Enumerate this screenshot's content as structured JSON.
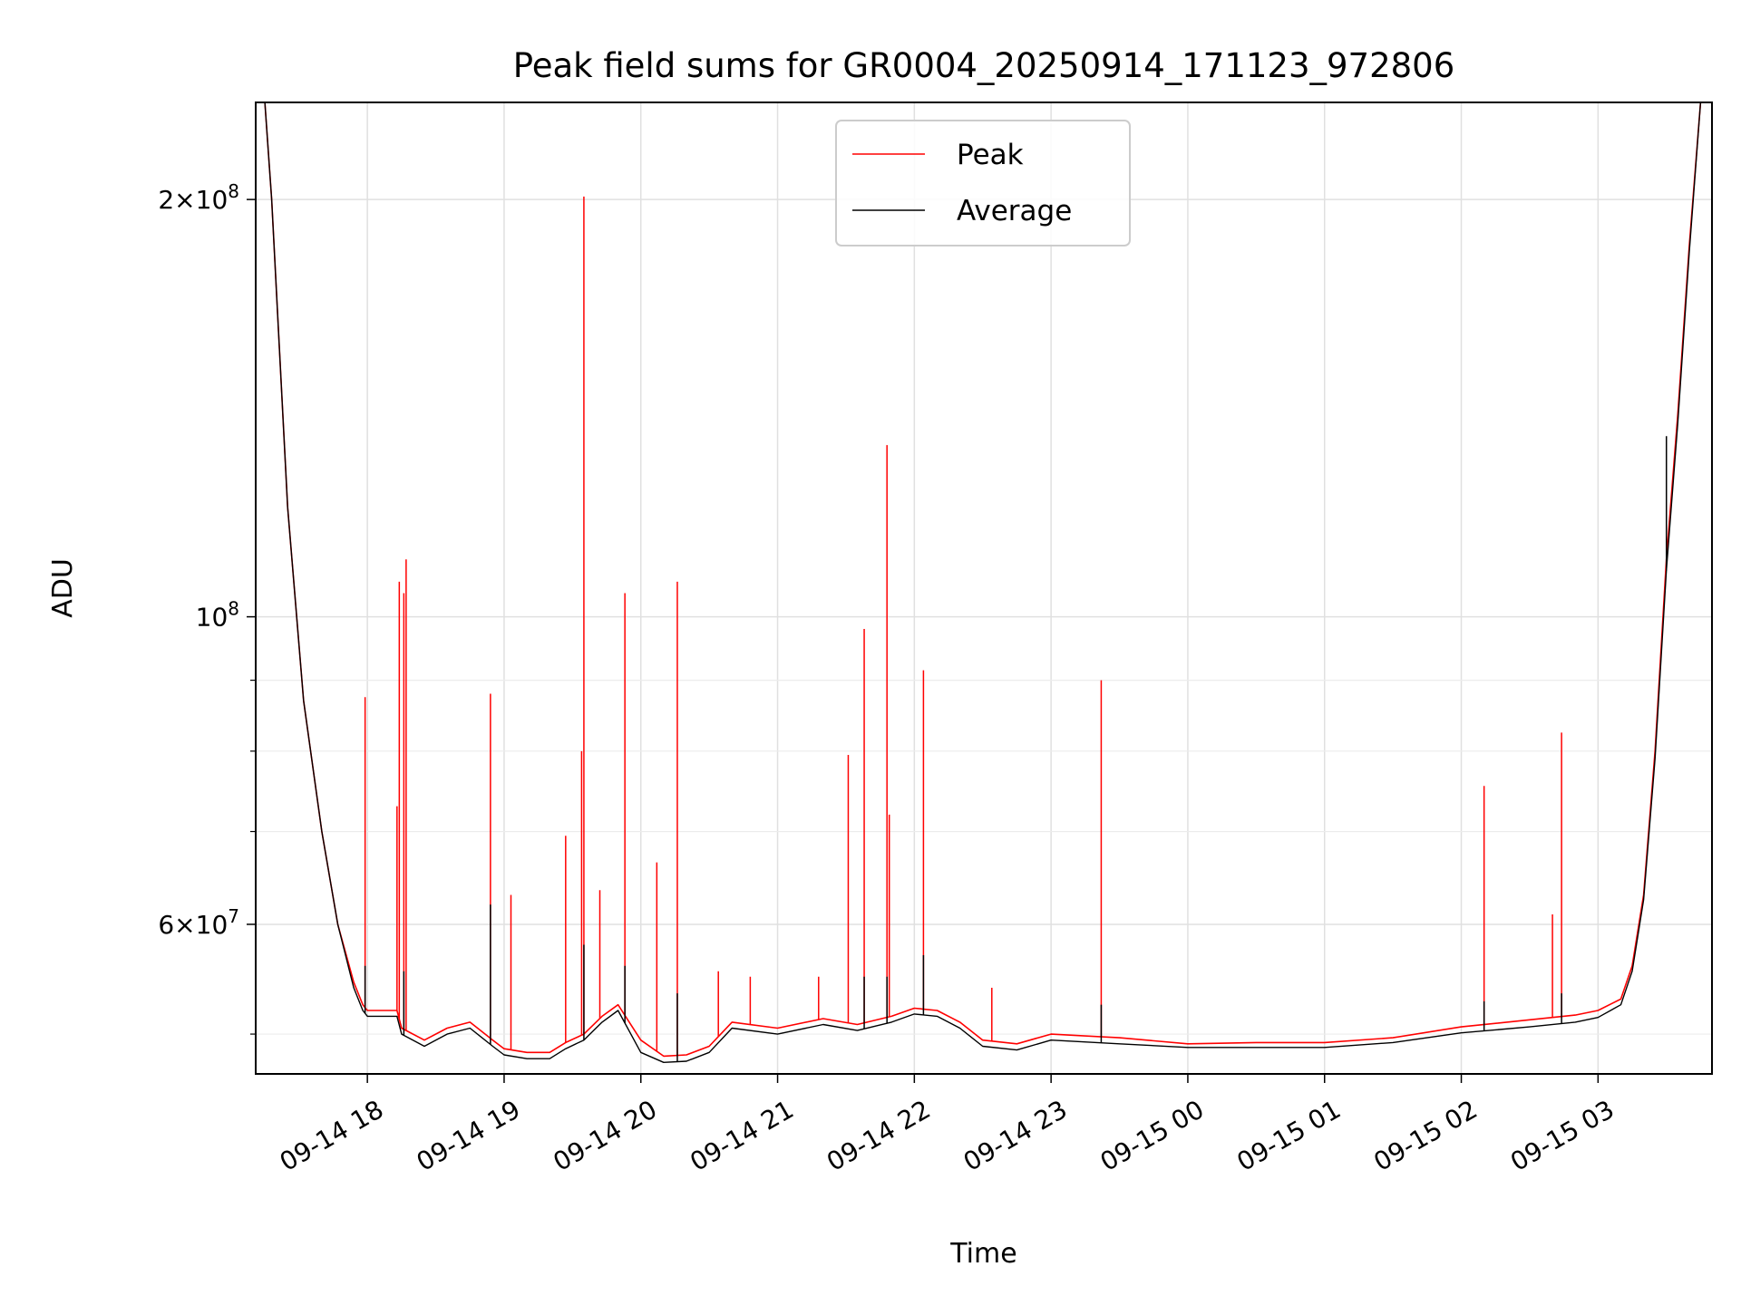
{
  "chart_data": {
    "type": "line",
    "title": "Peak field sums for GR0004_20250914_171123_972806",
    "xlabel": "Time",
    "ylabel": "ADU",
    "yscale": "log",
    "ylim": [
      46800000,
      235000000
    ],
    "xlim": [
      "2025-09-14 17:11",
      "2025-09-15 03:50"
    ],
    "grid": true,
    "legend_position": "top-center",
    "x_tick_labels": [
      "09-14 18",
      "09-14 19",
      "09-14 20",
      "09-14 21",
      "09-14 22",
      "09-14 23",
      "09-15 00",
      "09-15 01",
      "09-15 02",
      "09-15 03"
    ],
    "x_ticks": [
      "2025-09-14 18:00",
      "2025-09-14 19:00",
      "2025-09-14 20:00",
      "2025-09-14 21:00",
      "2025-09-14 22:00",
      "2025-09-14 23:00",
      "2025-09-15 00:00",
      "2025-09-15 01:00",
      "2025-09-15 02:00",
      "2025-09-15 03:00"
    ],
    "y_ticks": [
      {
        "value": 60000000,
        "mantissa": "6",
        "exponent": "7"
      },
      {
        "value": 100000000,
        "mantissa": "",
        "exponent": "8"
      },
      {
        "value": 200000000,
        "mantissa": "2",
        "exponent": "8"
      }
    ],
    "y_minor_ticks": [
      50000000,
      70000000,
      80000000,
      90000000
    ],
    "series": [
      {
        "name": "Peak",
        "color": "#ff0000",
        "x": [
          "2025-09-14 17:11",
          "2025-09-14 17:15",
          "2025-09-14 17:18",
          "2025-09-14 17:25",
          "2025-09-14 17:32",
          "2025-09-14 17:40",
          "2025-09-14 17:47",
          "2025-09-14 17:54",
          "2025-09-14 17:58",
          "2025-09-14 18:00",
          "2025-09-14 18:13",
          "2025-09-14 18:15",
          "2025-09-14 18:25",
          "2025-09-14 18:35",
          "2025-09-14 18:45",
          "2025-09-14 18:55",
          "2025-09-14 19:00",
          "2025-09-14 19:10",
          "2025-09-14 19:20",
          "2025-09-14 19:27",
          "2025-09-14 19:35",
          "2025-09-14 19:43",
          "2025-09-14 19:50",
          "2025-09-14 20:00",
          "2025-09-14 20:10",
          "2025-09-14 20:20",
          "2025-09-14 20:30",
          "2025-09-14 20:40",
          "2025-09-14 21:00",
          "2025-09-14 21:20",
          "2025-09-14 21:35",
          "2025-09-14 21:50",
          "2025-09-14 22:00",
          "2025-09-14 22:10",
          "2025-09-14 22:20",
          "2025-09-14 22:30",
          "2025-09-14 22:45",
          "2025-09-14 23:00",
          "2025-09-14 23:30",
          "2025-09-15 00:00",
          "2025-09-15 00:30",
          "2025-09-15 01:00",
          "2025-09-15 01:30",
          "2025-09-15 02:00",
          "2025-09-15 02:30",
          "2025-09-15 02:50",
          "2025-09-15 03:00",
          "2025-09-15 03:10",
          "2025-09-15 03:15",
          "2025-09-15 03:20",
          "2025-09-15 03:25",
          "2025-09-15 03:30",
          "2025-09-15 03:35",
          "2025-09-15 03:40",
          "2025-09-15 03:45",
          "2025-09-15 03:50"
        ],
        "values": [
          235000000,
          235000000,
          200000000,
          120000000,
          87000000,
          70000000,
          60000000,
          54500000,
          52500000,
          52000000,
          52000000,
          50500000,
          49500000,
          50500000,
          51000000,
          49500000,
          48800000,
          48500000,
          48500000,
          49300000,
          50000000,
          51500000,
          52500000,
          49500000,
          48200000,
          48300000,
          49000000,
          51000000,
          50500000,
          51300000,
          50800000,
          51500000,
          52200000,
          52000000,
          51000000,
          49500000,
          49200000,
          50000000,
          49700000,
          49200000,
          49300000,
          49300000,
          49700000,
          50600000,
          51200000,
          51600000,
          52000000,
          53000000,
          56000000,
          63000000,
          80000000,
          110000000,
          140000000,
          185000000,
          235000000,
          235000000
        ],
        "spikes": [
          {
            "x": "2025-09-14 17:59",
            "value": 87500000
          },
          {
            "x": "2025-09-14 18:13",
            "value": 73000000
          },
          {
            "x": "2025-09-14 18:14",
            "value": 106000000
          },
          {
            "x": "2025-09-14 18:16",
            "value": 104000000
          },
          {
            "x": "2025-09-14 18:17",
            "value": 110000000
          },
          {
            "x": "2025-09-14 18:54",
            "value": 88000000
          },
          {
            "x": "2025-09-14 19:03",
            "value": 63000000
          },
          {
            "x": "2025-09-14 19:27",
            "value": 69500000
          },
          {
            "x": "2025-09-14 19:34",
            "value": 80000000
          },
          {
            "x": "2025-09-14 19:35",
            "value": 201000000
          },
          {
            "x": "2025-09-14 19:42",
            "value": 63500000
          },
          {
            "x": "2025-09-14 19:53",
            "value": 104000000
          },
          {
            "x": "2025-09-14 20:07",
            "value": 66500000
          },
          {
            "x": "2025-09-14 20:16",
            "value": 106000000
          },
          {
            "x": "2025-09-14 20:34",
            "value": 55500000
          },
          {
            "x": "2025-09-14 20:48",
            "value": 55000000
          },
          {
            "x": "2025-09-14 21:18",
            "value": 55000000
          },
          {
            "x": "2025-09-14 21:31",
            "value": 79500000
          },
          {
            "x": "2025-09-14 21:38",
            "value": 98000000
          },
          {
            "x": "2025-09-14 21:48",
            "value": 133000000
          },
          {
            "x": "2025-09-14 21:49",
            "value": 72000000
          },
          {
            "x": "2025-09-14 22:04",
            "value": 91500000
          },
          {
            "x": "2025-09-14 22:34",
            "value": 54000000
          },
          {
            "x": "2025-09-14 23:22",
            "value": 90000000
          },
          {
            "x": "2025-09-15 02:10",
            "value": 75500000
          },
          {
            "x": "2025-09-15 02:40",
            "value": 61000000
          },
          {
            "x": "2025-09-15 02:44",
            "value": 82500000
          }
        ]
      },
      {
        "name": "Average",
        "color": "#000000",
        "x": [
          "2025-09-14 17:11",
          "2025-09-14 17:15",
          "2025-09-14 17:18",
          "2025-09-14 17:25",
          "2025-09-14 17:32",
          "2025-09-14 17:40",
          "2025-09-14 17:47",
          "2025-09-14 17:54",
          "2025-09-14 17:58",
          "2025-09-14 18:00",
          "2025-09-14 18:13",
          "2025-09-14 18:15",
          "2025-09-14 18:25",
          "2025-09-14 18:35",
          "2025-09-14 18:45",
          "2025-09-14 18:55",
          "2025-09-14 19:00",
          "2025-09-14 19:10",
          "2025-09-14 19:20",
          "2025-09-14 19:27",
          "2025-09-14 19:35",
          "2025-09-14 19:43",
          "2025-09-14 19:50",
          "2025-09-14 20:00",
          "2025-09-14 20:10",
          "2025-09-14 20:20",
          "2025-09-14 20:30",
          "2025-09-14 20:40",
          "2025-09-14 21:00",
          "2025-09-14 21:20",
          "2025-09-14 21:35",
          "2025-09-14 21:50",
          "2025-09-14 22:00",
          "2025-09-14 22:10",
          "2025-09-14 22:20",
          "2025-09-14 22:30",
          "2025-09-14 22:45",
          "2025-09-14 23:00",
          "2025-09-14 23:30",
          "2025-09-15 00:00",
          "2025-09-15 00:30",
          "2025-09-15 01:00",
          "2025-09-15 01:30",
          "2025-09-15 02:00",
          "2025-09-15 02:30",
          "2025-09-15 02:50",
          "2025-09-15 03:00",
          "2025-09-15 03:10",
          "2025-09-15 03:15",
          "2025-09-15 03:20",
          "2025-09-15 03:25",
          "2025-09-15 03:30",
          "2025-09-15 03:35",
          "2025-09-15 03:40",
          "2025-09-15 03:45",
          "2025-09-15 03:50"
        ],
        "values": [
          235000000,
          235000000,
          200000000,
          120000000,
          87000000,
          70000000,
          60000000,
          54000000,
          52000000,
          51500000,
          51500000,
          50000000,
          49000000,
          50000000,
          50500000,
          49000000,
          48300000,
          48000000,
          48000000,
          48800000,
          49500000,
          51000000,
          52000000,
          48500000,
          47700000,
          47800000,
          48500000,
          50500000,
          50000000,
          50800000,
          50300000,
          51000000,
          51700000,
          51500000,
          50500000,
          49000000,
          48700000,
          49500000,
          49200000,
          48900000,
          48900000,
          48900000,
          49300000,
          50100000,
          50600000,
          51000000,
          51400000,
          52500000,
          55500000,
          62500000,
          79000000,
          108000000,
          138000000,
          183000000,
          235000000,
          235000000
        ],
        "spikes": [
          {
            "x": "2025-09-14 17:59",
            "value": 56000000
          },
          {
            "x": "2025-09-14 18:16",
            "value": 55500000
          },
          {
            "x": "2025-09-14 18:54",
            "value": 62000000
          },
          {
            "x": "2025-09-14 19:35",
            "value": 58000000
          },
          {
            "x": "2025-09-14 19:53",
            "value": 56000000
          },
          {
            "x": "2025-09-14 20:16",
            "value": 53500000
          },
          {
            "x": "2025-09-14 21:38",
            "value": 55000000
          },
          {
            "x": "2025-09-14 21:48",
            "value": 55000000
          },
          {
            "x": "2025-09-14 22:04",
            "value": 57000000
          },
          {
            "x": "2025-09-14 23:22",
            "value": 52500000
          },
          {
            "x": "2025-09-15 02:10",
            "value": 52800000
          },
          {
            "x": "2025-09-15 02:44",
            "value": 53500000
          },
          {
            "x": "2025-09-15 03:30",
            "value": 135000000
          }
        ]
      }
    ]
  }
}
